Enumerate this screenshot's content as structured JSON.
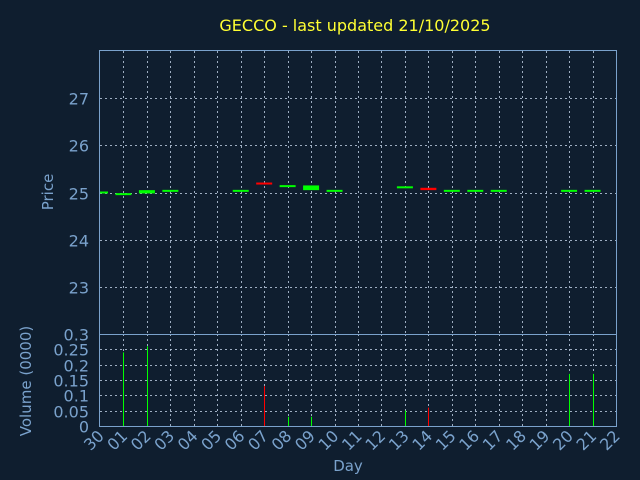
{
  "chart_data": {
    "type": "candlestick",
    "title": "GECCO - last updated 21/10/2025",
    "xlabel": "Day",
    "x_ticks": [
      "30",
      "01",
      "02",
      "03",
      "04",
      "05",
      "06",
      "07",
      "08",
      "09",
      "10",
      "11",
      "12",
      "13",
      "14",
      "15",
      "16",
      "17",
      "18",
      "19",
      "20",
      "21",
      "22"
    ],
    "price_panel": {
      "ylabel": "Price",
      "ylim": [
        22.0,
        28.0
      ],
      "y_ticks": [
        "23",
        "24",
        "25",
        "26",
        "27"
      ],
      "candles": [
        {
          "day": "30",
          "open": 25.0,
          "close": 25.0,
          "color": "#00ff00"
        },
        {
          "day": "01",
          "open": 24.95,
          "close": 24.98,
          "color": "#00ff00"
        },
        {
          "day": "02",
          "open": 24.98,
          "close": 25.05,
          "color": "#00ff00"
        },
        {
          "day": "03",
          "open": 25.02,
          "close": 25.05,
          "color": "#00ff00"
        },
        {
          "day": "06",
          "open": 25.02,
          "close": 25.05,
          "color": "#00ff00"
        },
        {
          "day": "07",
          "open": 25.2,
          "close": 25.18,
          "color": "#ff0000"
        },
        {
          "day": "08",
          "open": 25.12,
          "close": 25.15,
          "color": "#00ff00"
        },
        {
          "day": "09",
          "open": 25.05,
          "close": 25.15,
          "color": "#00ff00"
        },
        {
          "day": "10",
          "open": 25.02,
          "close": 25.05,
          "color": "#00ff00"
        },
        {
          "day": "13",
          "open": 25.1,
          "close": 25.12,
          "color": "#00ff00"
        },
        {
          "day": "14",
          "open": 25.1,
          "close": 25.05,
          "color": "#ff0000"
        },
        {
          "day": "15",
          "open": 25.02,
          "close": 25.05,
          "color": "#00ff00"
        },
        {
          "day": "16",
          "open": 25.02,
          "close": 25.05,
          "color": "#00ff00"
        },
        {
          "day": "17",
          "open": 25.02,
          "close": 25.05,
          "color": "#00ff00"
        },
        {
          "day": "20",
          "open": 25.02,
          "close": 25.05,
          "color": "#00ff00"
        },
        {
          "day": "21",
          "open": 25.02,
          "close": 25.05,
          "color": "#00ff00"
        }
      ]
    },
    "volume_panel": {
      "ylabel": "Volume (0000)",
      "ylim": [
        0,
        0.3
      ],
      "y_ticks": [
        "0",
        "0.05",
        "0.1",
        "0.15",
        "0.2",
        "0.25",
        "0.3"
      ],
      "bars": [
        {
          "day": "01",
          "value": 0.24,
          "color": "#00ff00"
        },
        {
          "day": "02",
          "value": 0.26,
          "color": "#00ff00"
        },
        {
          "day": "07",
          "value": 0.13,
          "color": "#ff0000"
        },
        {
          "day": "08",
          "value": 0.03,
          "color": "#00ff00"
        },
        {
          "day": "09",
          "value": 0.03,
          "color": "#00ff00"
        },
        {
          "day": "13",
          "value": 0.05,
          "color": "#00ff00"
        },
        {
          "day": "14",
          "value": 0.06,
          "color": "#ff0000"
        },
        {
          "day": "20",
          "value": 0.17,
          "color": "#00ff00"
        },
        {
          "day": "21",
          "value": 0.17,
          "color": "#00ff00"
        }
      ]
    },
    "grid": true,
    "colors": {
      "background": "#0f1e2f",
      "title": "#ffff33",
      "axis_text": "#7aa2cc",
      "up": "#00ff00",
      "down": "#ff0000"
    }
  }
}
